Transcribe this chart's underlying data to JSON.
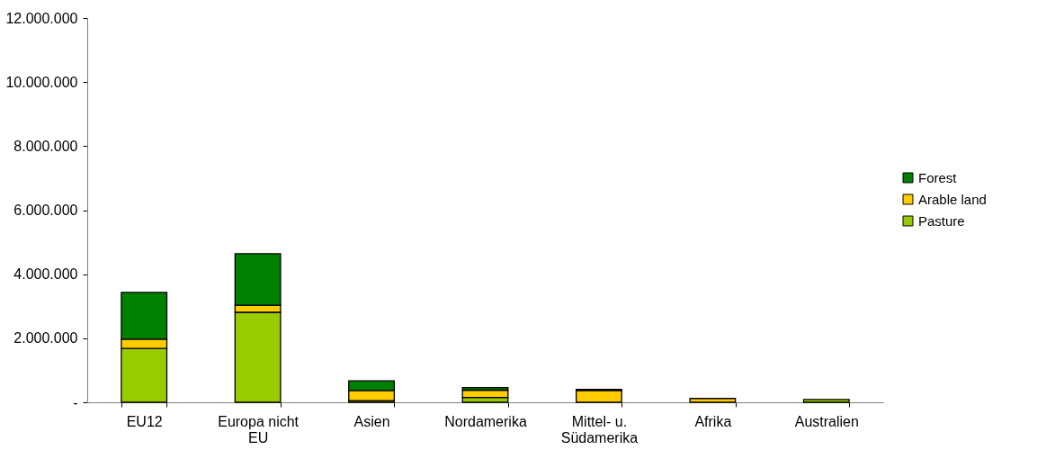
{
  "chart_data": {
    "type": "bar",
    "stacked": true,
    "categories": [
      "EU12",
      "Europa nicht EU",
      "Asien",
      "Nordamerika",
      "Mittel- u. Südamerika",
      "Afrika",
      "Australien"
    ],
    "series": [
      {
        "name": "Pasture",
        "color": "#99cc00",
        "values": [
          1680000,
          2810000,
          50000,
          150000,
          null,
          null,
          90000
        ]
      },
      {
        "name": "Arable land",
        "color": "#ffcc00",
        "values": [
          290000,
          220000,
          320000,
          230000,
          370000,
          120000,
          null
        ]
      },
      {
        "name": "Forest",
        "color": "#008000",
        "values": [
          1460000,
          1610000,
          300000,
          80000,
          30000,
          null,
          null
        ]
      }
    ],
    "ylim": [
      0,
      12000000
    ],
    "yticks": [
      {
        "value": 0,
        "label": "-"
      },
      {
        "value": 2000000,
        "label": "2.000.000"
      },
      {
        "value": 4000000,
        "label": "4.000.000"
      },
      {
        "value": 6000000,
        "label": "6.000.000"
      },
      {
        "value": 8000000,
        "label": "8.000.000"
      },
      {
        "value": 10000000,
        "label": "10.000.000"
      },
      {
        "value": 12000000,
        "label": "12.000.000"
      }
    ],
    "grid": false,
    "legend": "right"
  }
}
